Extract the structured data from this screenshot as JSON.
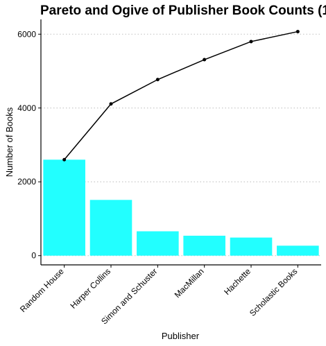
{
  "chart_data": {
    "type": "bar",
    "title": "Pareto and Ogive of Publisher Book Counts (1",
    "xlabel": "Publisher",
    "ylabel": "Number of Books",
    "categories": [
      "Random House",
      "Harper Collins",
      "Simon and Schuster",
      "MacMillan",
      "Hachette",
      "Scholastic Books"
    ],
    "ylim": [
      -250,
      6400
    ],
    "yticks": [
      0,
      2000,
      4000,
      6000
    ],
    "grid": "horizontal dotted",
    "series": [
      {
        "type": "bar",
        "values": [
          2600,
          1510,
          660,
          540,
          490,
          270
        ],
        "color": "#22ffff"
      },
      {
        "type": "line",
        "values": [
          2600,
          4110,
          4770,
          5310,
          5800,
          6070
        ],
        "color": "#000000"
      }
    ]
  }
}
